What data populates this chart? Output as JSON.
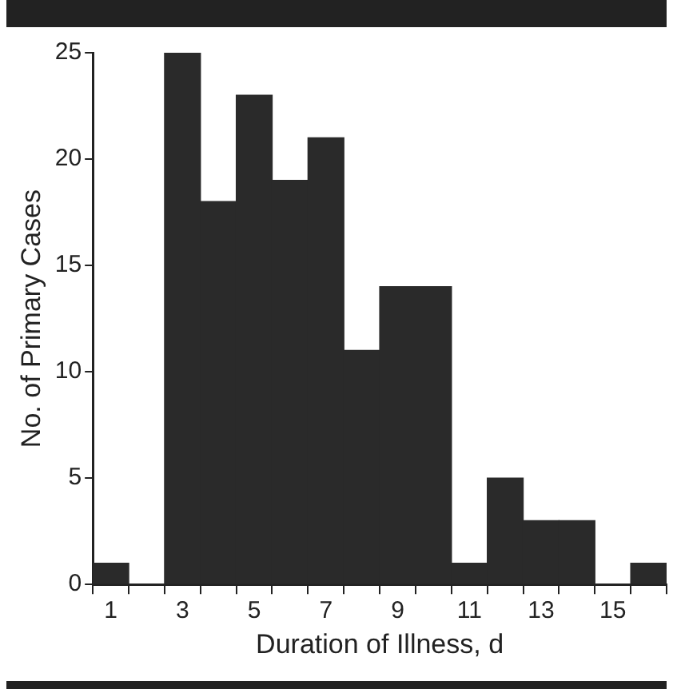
{
  "chart_data": {
    "type": "histogram",
    "xlabel": "Duration of Illness, d",
    "ylabel": "No. of Primary Cases",
    "bins": [
      0.5,
      1.5,
      2.5,
      3.5,
      4.5,
      5.5,
      6.5,
      7.5,
      8.5,
      9.5,
      10.5,
      11.5,
      12.5,
      13.5,
      14.5,
      15.5,
      16.5
    ],
    "values": [
      1,
      0,
      25,
      18,
      23,
      19,
      21,
      11,
      14,
      14,
      1,
      5,
      3,
      3,
      0,
      1
    ],
    "color": "#2a2a2a",
    "xlim": [
      0.5,
      16.5
    ],
    "xticks": [
      {
        "value": 0.5,
        "label": null
      },
      1,
      {
        "value": 1.5,
        "label": null
      },
      {
        "value": 2.5,
        "label": null
      },
      3,
      {
        "value": 3.5,
        "label": null
      },
      {
        "value": 4.5,
        "label": null
      },
      5,
      {
        "value": 5.5,
        "label": null
      },
      {
        "value": 6.5,
        "label": null
      },
      7,
      {
        "value": 7.5,
        "label": null
      },
      {
        "value": 8.5,
        "label": null
      },
      9,
      {
        "value": 9.5,
        "label": null
      },
      {
        "value": 10.5,
        "label": null
      },
      11,
      {
        "value": 11.5,
        "label": null
      },
      {
        "value": 12.5,
        "label": null
      },
      13,
      {
        "value": 13.5,
        "label": null
      },
      {
        "value": 14.5,
        "label": null
      },
      15,
      {
        "value": 15.5,
        "label": null
      },
      {
        "value": 16.5,
        "label": null
      }
    ],
    "ylim": [
      0,
      25
    ],
    "yticks": [
      0,
      5,
      10,
      15,
      20,
      25
    ],
    "grid": false,
    "legend": false
  }
}
